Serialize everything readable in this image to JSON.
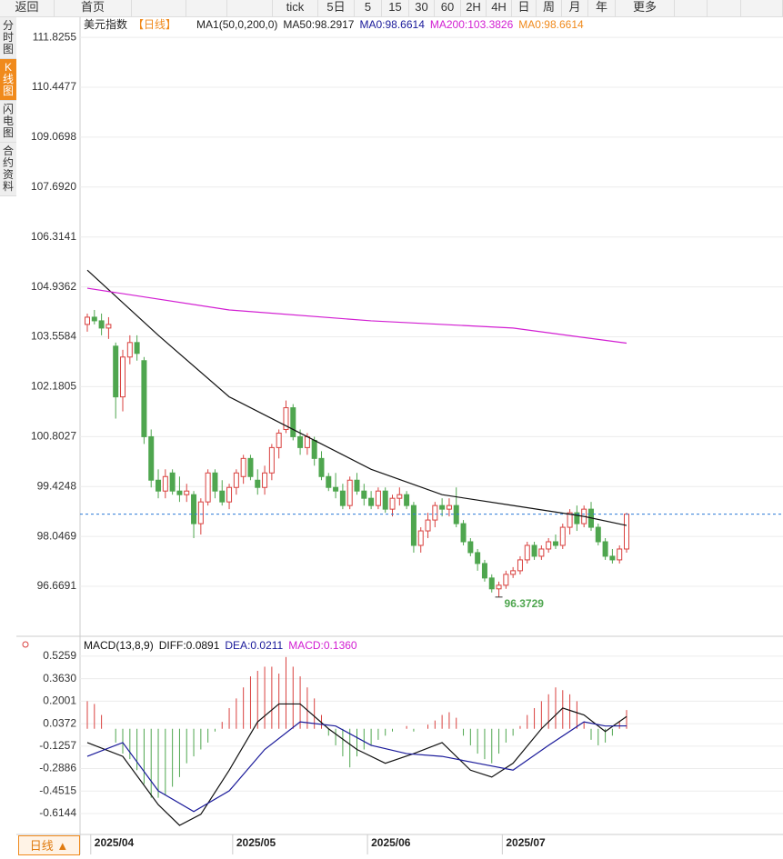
{
  "toolbar": {
    "items": [
      "返回",
      "首页",
      "tick",
      "5日",
      "5",
      "15",
      "30",
      "60",
      "2H",
      "4H",
      "日",
      "周",
      "月",
      "年",
      "更多"
    ]
  },
  "sidebar": {
    "tabs": [
      "分时图",
      "K线图",
      "闪电图",
      "合约资料"
    ],
    "active": 1
  },
  "chart_data": [
    {
      "type": "candlestick",
      "legend": [
        "美元指数",
        "【日线】",
        "MA1(50,0,200,0)",
        "MA50:98.2917",
        "MA0:98.6614",
        "MA200:103.3826",
        "MA0:98.6614"
      ],
      "ylim": [
        95.29,
        112.38
      ],
      "yticks": [
        111.8255,
        110.4477,
        109.0698,
        {
          "value": 107.692,
          "label": "107.6920"
        },
        106.3141,
        104.9362,
        103.5584,
        102.1805,
        100.8027,
        99.4248,
        98.0469,
        96.6691
      ],
      "up_color": "#d9413f",
      "down_color": "#4fa64f",
      "last_price": 98.6614,
      "last_color": "#2b7bd8",
      "candles": [
        [
          103.9,
          104.2,
          103.7,
          104.1
        ],
        [
          104.1,
          104.3,
          103.9,
          104.0
        ],
        [
          104.0,
          104.2,
          103.6,
          103.8
        ],
        [
          103.8,
          104.1,
          103.5,
          103.9
        ],
        [
          103.3,
          103.4,
          101.3,
          101.9
        ],
        [
          101.9,
          103.2,
          101.5,
          103.0
        ],
        [
          103.0,
          103.6,
          102.8,
          103.4
        ],
        [
          103.4,
          103.6,
          102.9,
          103.1
        ],
        [
          102.9,
          103.0,
          100.6,
          100.8
        ],
        [
          100.8,
          101.0,
          99.4,
          99.6
        ],
        [
          99.6,
          99.9,
          99.1,
          99.3
        ],
        [
          99.3,
          99.9,
          99.1,
          99.7
        ],
        [
          99.8,
          99.9,
          99.2,
          99.3
        ],
        [
          99.3,
          99.7,
          99.0,
          99.2
        ],
        [
          99.2,
          99.5,
          99.0,
          99.3
        ],
        [
          99.2,
          99.3,
          98.0,
          98.4
        ],
        [
          98.4,
          99.1,
          98.1,
          99.0
        ],
        [
          99.0,
          99.9,
          98.9,
          99.8
        ],
        [
          99.8,
          99.9,
          99.1,
          99.3
        ],
        [
          99.3,
          99.6,
          98.9,
          99.0
        ],
        [
          99.0,
          99.5,
          98.8,
          99.4
        ],
        [
          99.4,
          99.9,
          99.2,
          99.8
        ],
        [
          99.7,
          100.3,
          99.5,
          100.2
        ],
        [
          100.2,
          100.3,
          99.6,
          99.7
        ],
        [
          99.6,
          99.9,
          99.2,
          99.4
        ],
        [
          99.4,
          100.0,
          99.2,
          99.8
        ],
        [
          99.8,
          100.6,
          99.6,
          100.5
        ],
        [
          100.5,
          101.0,
          100.2,
          100.9
        ],
        [
          101.0,
          101.8,
          100.9,
          101.6
        ],
        [
          101.6,
          101.7,
          100.7,
          100.8
        ],
        [
          100.8,
          101.0,
          100.3,
          100.5
        ],
        [
          100.5,
          100.9,
          100.3,
          100.8
        ],
        [
          100.7,
          100.8,
          100.0,
          100.2
        ],
        [
          100.2,
          100.4,
          99.6,
          99.7
        ],
        [
          99.7,
          99.8,
          99.3,
          99.4
        ],
        [
          99.4,
          99.8,
          99.1,
          99.3
        ],
        [
          99.3,
          99.5,
          98.8,
          98.9
        ],
        [
          98.9,
          99.7,
          98.8,
          99.6
        ],
        [
          99.6,
          99.8,
          99.2,
          99.3
        ],
        [
          99.3,
          99.5,
          98.9,
          99.1
        ],
        [
          99.1,
          99.3,
          98.8,
          98.9
        ],
        [
          98.9,
          99.4,
          98.8,
          99.3
        ],
        [
          99.3,
          99.4,
          98.7,
          98.8
        ],
        [
          98.8,
          99.2,
          98.6,
          99.1
        ],
        [
          99.1,
          99.4,
          98.9,
          99.2
        ],
        [
          99.2,
          99.3,
          98.8,
          98.9
        ],
        [
          98.9,
          99.0,
          97.6,
          97.8
        ],
        [
          97.8,
          98.3,
          97.6,
          98.2
        ],
        [
          98.2,
          98.7,
          98.0,
          98.5
        ],
        [
          98.5,
          99.0,
          98.3,
          98.9
        ],
        [
          98.9,
          99.1,
          98.6,
          98.8
        ],
        [
          98.8,
          99.1,
          98.6,
          98.9
        ],
        [
          98.9,
          99.4,
          98.3,
          98.4
        ],
        [
          98.4,
          98.5,
          97.8,
          97.9
        ],
        [
          97.9,
          98.0,
          97.5,
          97.6
        ],
        [
          97.6,
          97.7,
          97.1,
          97.3
        ],
        [
          97.3,
          97.4,
          96.8,
          96.9
        ],
        [
          96.9,
          97.0,
          96.5,
          96.6
        ],
        [
          96.6,
          96.8,
          96.3729,
          96.7
        ],
        [
          96.7,
          97.1,
          96.6,
          97.0
        ],
        [
          97.0,
          97.2,
          96.9,
          97.1
        ],
        [
          97.1,
          97.5,
          97.0,
          97.4
        ],
        [
          97.4,
          97.9,
          97.3,
          97.8
        ],
        [
          97.8,
          97.9,
          97.4,
          97.5
        ],
        [
          97.5,
          97.8,
          97.4,
          97.7
        ],
        [
          97.7,
          98.0,
          97.6,
          97.9
        ],
        [
          97.9,
          98.1,
          97.7,
          97.8
        ],
        [
          97.8,
          98.4,
          97.7,
          98.3
        ],
        [
          98.3,
          98.8,
          98.1,
          98.7
        ],
        [
          98.7,
          98.9,
          98.2,
          98.4
        ],
        [
          98.4,
          98.9,
          98.3,
          98.8
        ],
        [
          98.8,
          99.0,
          98.2,
          98.3
        ],
        [
          98.3,
          98.4,
          97.8,
          97.9
        ],
        [
          97.9,
          98.0,
          97.4,
          97.5
        ],
        [
          97.5,
          97.7,
          97.3,
          97.4
        ],
        [
          97.4,
          97.8,
          97.3,
          97.7
        ],
        [
          97.7,
          98.7,
          97.6,
          98.6614
        ]
      ],
      "min_label": {
        "index": 58,
        "value": 96.3729,
        "label": "96.3729"
      },
      "lines": [
        {
          "color": "#111111",
          "x": [
            0,
            10,
            20,
            30,
            40,
            50,
            60,
            70,
            76
          ],
          "values": [
            105.4,
            103.6,
            101.9,
            100.9,
            99.9,
            99.2,
            98.9,
            98.6,
            98.35
          ]
        },
        {
          "color": "#d21ed2",
          "x": [
            0,
            20,
            40,
            60,
            76
          ],
          "values": [
            104.9,
            104.3,
            104.0,
            103.8,
            103.3826
          ]
        }
      ]
    },
    {
      "type": "macd",
      "legend": [
        "MACD(13,8,9)",
        "DIFF:0.0891",
        "DEA:0.0211",
        "MACD:0.1360"
      ],
      "legend_colors": [
        "#111111",
        "#111111",
        "#1a1a9a",
        "#d21ed2"
      ],
      "ylim": [
        -0.766,
        0.644
      ],
      "yticks": [
        0.5259,
        {
          "value": 0.363,
          "label": "0.3630"
        },
        0.2001,
        0.0372,
        -0.1257,
        -0.2886,
        -0.4515,
        -0.6144
      ],
      "up_color": "#d9413f",
      "down_color": "#4fa64f",
      "values": [
        0.2,
        0.18,
        0.1,
        0,
        -0.1,
        -0.18,
        -0.22,
        -0.3,
        -0.4,
        -0.5,
        -0.5,
        -0.48,
        -0.42,
        -0.35,
        -0.25,
        -0.2,
        -0.15,
        -0.1,
        -0.02,
        0.05,
        0.15,
        0.22,
        0.3,
        0.38,
        0.42,
        0.45,
        0.45,
        0.4,
        0.52,
        0.45,
        0.38,
        0.3,
        0.22,
        0.1,
        -0.05,
        -0.12,
        -0.2,
        -0.28,
        -0.2,
        -0.15,
        -0.12,
        -0.08,
        -0.05,
        -0.02,
        0,
        0.02,
        -0.02,
        0,
        0.03,
        0.06,
        0.1,
        0.12,
        0.08,
        -0.05,
        -0.12,
        -0.18,
        -0.22,
        -0.25,
        -0.18,
        -0.1,
        -0.05,
        0.02,
        0.1,
        0.15,
        0.2,
        0.25,
        0.3,
        0.28,
        0.25,
        0.2,
        0.05,
        -0.08,
        -0.12,
        -0.1,
        -0.05,
        0.05,
        0.136
      ],
      "lines": [
        {
          "color": "#111111",
          "x": [
            0,
            5,
            10,
            13,
            16,
            20,
            24,
            27,
            30,
            34,
            38,
            42,
            46,
            50,
            54,
            57,
            60,
            64,
            67,
            70,
            73,
            76
          ],
          "values": [
            -0.1,
            -0.2,
            -0.55,
            -0.7,
            -0.62,
            -0.3,
            0.05,
            0.18,
            0.18,
            0,
            -0.15,
            -0.25,
            -0.18,
            -0.1,
            -0.3,
            -0.35,
            -0.25,
            0,
            0.15,
            0.1,
            -0.02,
            0.0891
          ]
        },
        {
          "color": "#1a1a9a",
          "x": [
            0,
            5,
            10,
            15,
            20,
            25,
            30,
            35,
            40,
            45,
            50,
            55,
            60,
            65,
            70,
            73,
            76
          ],
          "values": [
            -0.2,
            -0.1,
            -0.45,
            -0.6,
            -0.45,
            -0.15,
            0.05,
            0.02,
            -0.12,
            -0.18,
            -0.2,
            -0.25,
            -0.3,
            -0.12,
            0.05,
            0.02,
            0.0211
          ]
        }
      ]
    }
  ],
  "x_axis": {
    "labels": [
      {
        "index": 1,
        "label": "2025/04"
      },
      {
        "index": 21,
        "label": "2025/05"
      },
      {
        "index": 40,
        "label": "2025/06"
      },
      {
        "index": 59,
        "label": "2025/07"
      }
    ]
  },
  "bottom_tab": "日线 ▲"
}
